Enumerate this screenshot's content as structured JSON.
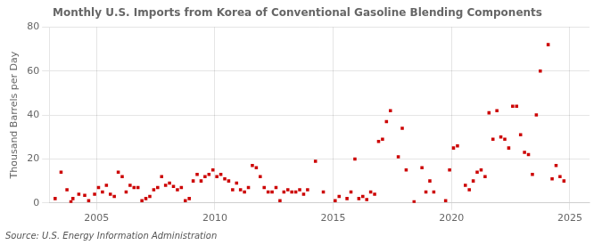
{
  "chart_data": {
    "type": "scatter",
    "title": "Monthly U.S. Imports from Korea of Conventional Gasoline Blending Components",
    "ylabel": "Thousand Barrels per Day",
    "annotations": [
      "Source: U.S. Energy Information Administration"
    ],
    "color": "#cc0000",
    "marker": "square",
    "grid": true,
    "xlim": [
      2003.0,
      2025.83
    ],
    "xticks": [
      2005,
      2010,
      2015,
      2020,
      2025
    ],
    "ylim": [
      0,
      80
    ],
    "yticks": [
      0,
      20,
      40,
      60,
      80
    ],
    "x": [
      2003.25,
      2003.5,
      2003.75,
      2003.917,
      2004.0,
      2004.25,
      2004.5,
      2004.667,
      2004.917,
      2005.083,
      2005.25,
      2005.417,
      2005.583,
      2005.75,
      2005.917,
      2006.083,
      2006.25,
      2006.417,
      2006.583,
      2006.75,
      2006.917,
      2007.083,
      2007.25,
      2007.417,
      2007.583,
      2007.75,
      2007.917,
      2008.083,
      2008.25,
      2008.417,
      2008.583,
      2008.75,
      2008.917,
      2009.083,
      2009.25,
      2009.417,
      2009.583,
      2009.75,
      2009.917,
      2010.083,
      2010.25,
      2010.417,
      2010.583,
      2010.75,
      2010.917,
      2011.083,
      2011.25,
      2011.417,
      2011.583,
      2011.75,
      2011.917,
      2012.083,
      2012.25,
      2012.417,
      2012.583,
      2012.75,
      2012.917,
      2013.083,
      2013.25,
      2013.417,
      2013.583,
      2013.75,
      2013.917,
      2014.25,
      2014.583,
      2015.083,
      2015.25,
      2015.583,
      2015.75,
      2015.917,
      2016.083,
      2016.25,
      2016.417,
      2016.583,
      2016.75,
      2016.917,
      2017.083,
      2017.25,
      2017.417,
      2017.75,
      2017.917,
      2018.083,
      2018.417,
      2018.75,
      2018.917,
      2019.083,
      2019.25,
      2019.75,
      2019.917,
      2020.083,
      2020.25,
      2020.583,
      2020.75,
      2020.917,
      2021.083,
      2021.25,
      2021.417,
      2021.583,
      2021.75,
      2021.917,
      2022.083,
      2022.25,
      2022.417,
      2022.583,
      2022.75,
      2022.917,
      2023.083,
      2023.25,
      2023.417,
      2023.583,
      2023.75,
      2024.083,
      2024.25,
      2024.417,
      2024.583,
      2024.75
    ],
    "values": [
      2.0,
      14.0,
      6.0,
      0.5,
      2.0,
      4.0,
      3.5,
      1.0,
      4.0,
      7.0,
      5.0,
      8.0,
      4.0,
      3.0,
      14.0,
      12.0,
      5.0,
      8.0,
      7.0,
      7.0,
      1.0,
      2.0,
      3.0,
      6.0,
      7.0,
      12.0,
      8.0,
      9.0,
      7.5,
      6.0,
      7.0,
      1.0,
      2.0,
      10.0,
      13.0,
      10.0,
      12.0,
      13.0,
      15.0,
      12.0,
      13.0,
      11.0,
      10.0,
      6.0,
      9.0,
      6.0,
      5.0,
      7.0,
      17.0,
      16.0,
      12.0,
      7.0,
      5.0,
      5.0,
      7.0,
      1.0,
      5.0,
      6.0,
      5.0,
      5.0,
      6.0,
      4.0,
      6.0,
      19.0,
      5.0,
      1.0,
      3.0,
      2.0,
      5.0,
      20.0,
      2.0,
      3.0,
      1.5,
      5.0,
      4.0,
      28.0,
      29.0,
      37.0,
      42.0,
      21.0,
      34.0,
      15.0,
      0.5,
      16.0,
      5.0,
      10.0,
      5.0,
      1.0,
      15.0,
      25.0,
      26.0,
      8.0,
      6.0,
      10.0,
      14.0,
      15.0,
      12.0,
      41.0,
      29.0,
      42.0,
      30.0,
      29.0,
      25.0,
      44.0,
      44.0,
      31.0,
      23.0,
      22.0,
      13.0,
      40.0,
      60.0,
      72.0,
      11.0,
      17.0,
      12.0,
      10.0
    ]
  }
}
